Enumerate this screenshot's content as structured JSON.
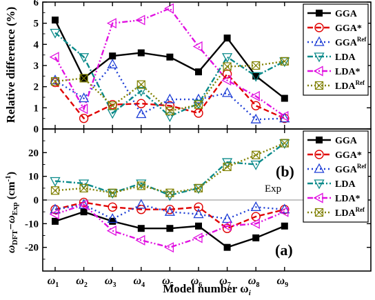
{
  "figure": {
    "xlabel": "Model number ω",
    "xlabel_sub": "i",
    "categories": [
      {
        "main": "ω",
        "sub": "1"
      },
      {
        "main": "ω",
        "sub": "2"
      },
      {
        "main": "ω",
        "sub": "3"
      },
      {
        "main": "ω",
        "sub": "4"
      },
      {
        "main": "ω",
        "sub": "5"
      },
      {
        "main": "ω",
        "sub": "6"
      },
      {
        "main": "ω",
        "sub": "7"
      },
      {
        "main": "ω",
        "sub": "8"
      },
      {
        "main": "ω",
        "sub": "9"
      }
    ]
  },
  "chart_data": [
    {
      "type": "line",
      "panel_label": "(b)",
      "ylabel": "Relative difference (%)",
      "ylim": [
        0,
        6
      ],
      "yticks": [
        0,
        1,
        2,
        3,
        4,
        5,
        6
      ],
      "grid": false,
      "legend_position": "top-right",
      "categories": [
        "ω1",
        "ω2",
        "ω3",
        "ω4",
        "ω5",
        "ω6",
        "ω7",
        "ω8",
        "ω9"
      ],
      "series": [
        {
          "name": "GGA",
          "name_sup": "",
          "color": "#000000",
          "marker": "square-filled",
          "dash": "solid",
          "values": [
            5.15,
            2.4,
            3.45,
            3.6,
            3.4,
            2.7,
            4.3,
            2.5,
            1.45
          ]
        },
        {
          "name": "GGA*",
          "name_sup": "",
          "color": "#e00000",
          "marker": "circle-open",
          "dash": "dash",
          "values": [
            2.2,
            0.5,
            1.15,
            1.2,
            1.1,
            0.75,
            2.6,
            1.1,
            0.5
          ]
        },
        {
          "name": "GGA",
          "name_sup": "Ref",
          "color": "#1f3fd6",
          "marker": "triangle-up-open",
          "dash": "dot",
          "values": [
            2.3,
            1.45,
            3.05,
            0.7,
            1.4,
            1.4,
            1.7,
            0.45,
            0.5
          ]
        },
        {
          "name": "LDA",
          "name_sup": "",
          "color": "#0a8a8a",
          "marker": "triangle-down-open",
          "dash": "dashdot",
          "values": [
            4.55,
            3.4,
            0.75,
            1.8,
            0.6,
            1.2,
            3.4,
            2.5,
            3.2
          ]
        },
        {
          "name": "LDA*",
          "name_sup": "",
          "color": "#e010e0",
          "marker": "triangle-left-open",
          "dash": "dashdotdot",
          "values": [
            3.4,
            0.95,
            5.0,
            5.15,
            5.7,
            3.9,
            2.3,
            1.55,
            0.6
          ]
        },
        {
          "name": "LDA",
          "name_sup": "Ref",
          "color": "#808000",
          "marker": "x-box",
          "dash": "shortdot",
          "values": [
            2.25,
            2.4,
            1.1,
            2.1,
            0.85,
            1.15,
            2.95,
            3.0,
            3.2
          ]
        }
      ]
    },
    {
      "type": "line",
      "panel_label": "(a)",
      "ylabel_main": "ω",
      "ylabel_sub1": "DFT",
      "ylabel_mid": "−ω",
      "ylabel_sub2": "Exp",
      "ylabel_unit": " (cm",
      "ylabel_sup": "-1",
      "ylabel_close": ")",
      "ylim": [
        -30,
        30
      ],
      "yticks": [
        -20,
        -10,
        0,
        10,
        20
      ],
      "grid": false,
      "legend_position": "top-right",
      "reference_line": {
        "y": 0,
        "label": "Exp"
      },
      "categories": [
        "ω1",
        "ω2",
        "ω3",
        "ω4",
        "ω5",
        "ω6",
        "ω7",
        "ω8",
        "ω9"
      ],
      "series": [
        {
          "name": "GGA",
          "name_sup": "",
          "color": "#000000",
          "marker": "square-filled",
          "dash": "solid",
          "values": [
            -9,
            -5,
            -9,
            -12,
            -12,
            -11,
            -20,
            -16,
            -11
          ]
        },
        {
          "name": "GGA*",
          "name_sup": "",
          "color": "#e00000",
          "marker": "circle-open",
          "dash": "dash",
          "values": [
            -4,
            -1,
            -3,
            -4,
            -4,
            -3,
            -12,
            -7,
            -4
          ]
        },
        {
          "name": "GGA",
          "name_sup": "Ref",
          "color": "#1f3fd6",
          "marker": "triangle-up-open",
          "dash": "dot",
          "values": [
            -4,
            -2,
            -8,
            -2,
            -5,
            -6,
            -8,
            -3,
            -4
          ]
        },
        {
          "name": "LDA",
          "name_sup": "",
          "color": "#0a8a8a",
          "marker": "triangle-down-open",
          "dash": "dashdot",
          "values": [
            8,
            7,
            3,
            7,
            2,
            5,
            16,
            15,
            24
          ]
        },
        {
          "name": "LDA*",
          "name_sup": "",
          "color": "#e010e0",
          "marker": "triangle-left-open",
          "dash": "dashdotdot",
          "values": [
            -6,
            -2,
            -13,
            -17,
            -20,
            -16,
            -11,
            -10,
            -5
          ]
        },
        {
          "name": "LDA",
          "name_sup": "Ref",
          "color": "#808000",
          "marker": "x-box",
          "dash": "shortdot",
          "values": [
            4,
            5,
            3,
            6,
            3,
            5,
            14,
            19,
            24
          ]
        }
      ]
    }
  ]
}
